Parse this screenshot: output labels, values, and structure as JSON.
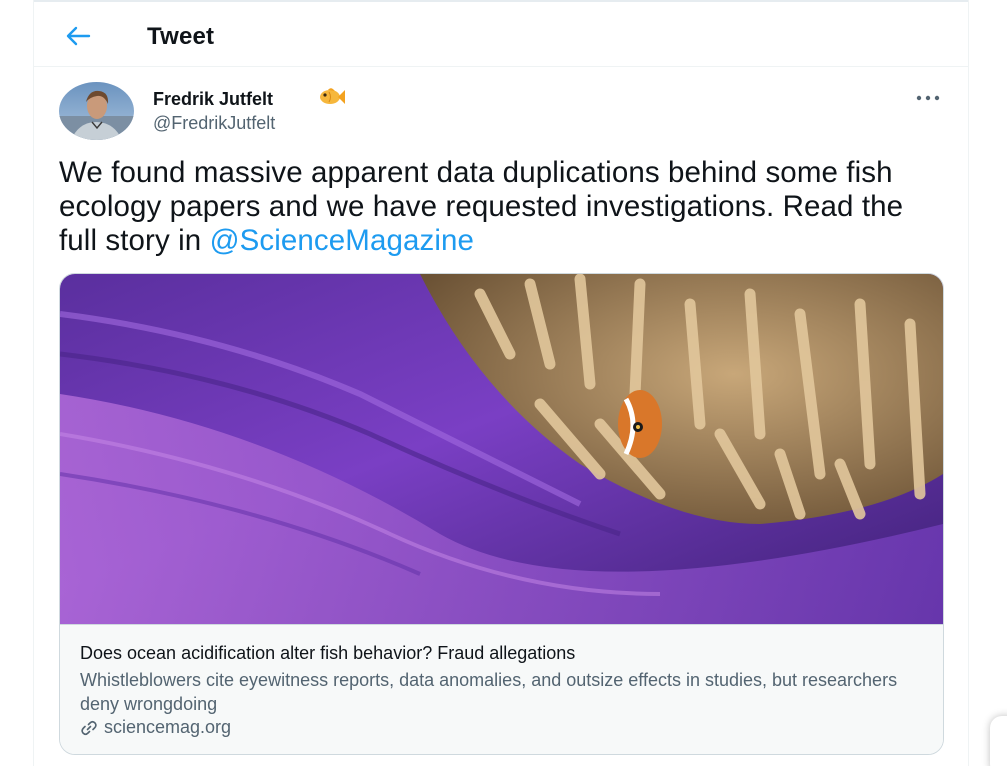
{
  "header": {
    "title": "Tweet",
    "back_icon": "arrow-left-icon"
  },
  "tweet": {
    "author": {
      "name": "Fredrik Jutfelt",
      "badge_icon": "fish-emoji-icon",
      "handle": "@FredrikJutfelt"
    },
    "text": "We found massive apparent data duplications behind some fish ecology papers and we have requested investigations. Read the full story in ",
    "mention": "@ScienceMagazine",
    "more_icon": "ellipsis-icon"
  },
  "link_card": {
    "image_icon": "anemone-photo",
    "title": "Does ocean acidification alter fish behavior? Fraud allegations",
    "description": "Whistleblowers cite eyewitness reports, data anomalies, and outsize effects in studies, but researchers deny wrongdoing",
    "domain": "sciencemag.org",
    "link_icon": "link-icon"
  },
  "colors": {
    "accent": "#1d9bf0",
    "text_primary": "#0f1419",
    "text_secondary": "#536471",
    "border": "#cfd9de"
  }
}
